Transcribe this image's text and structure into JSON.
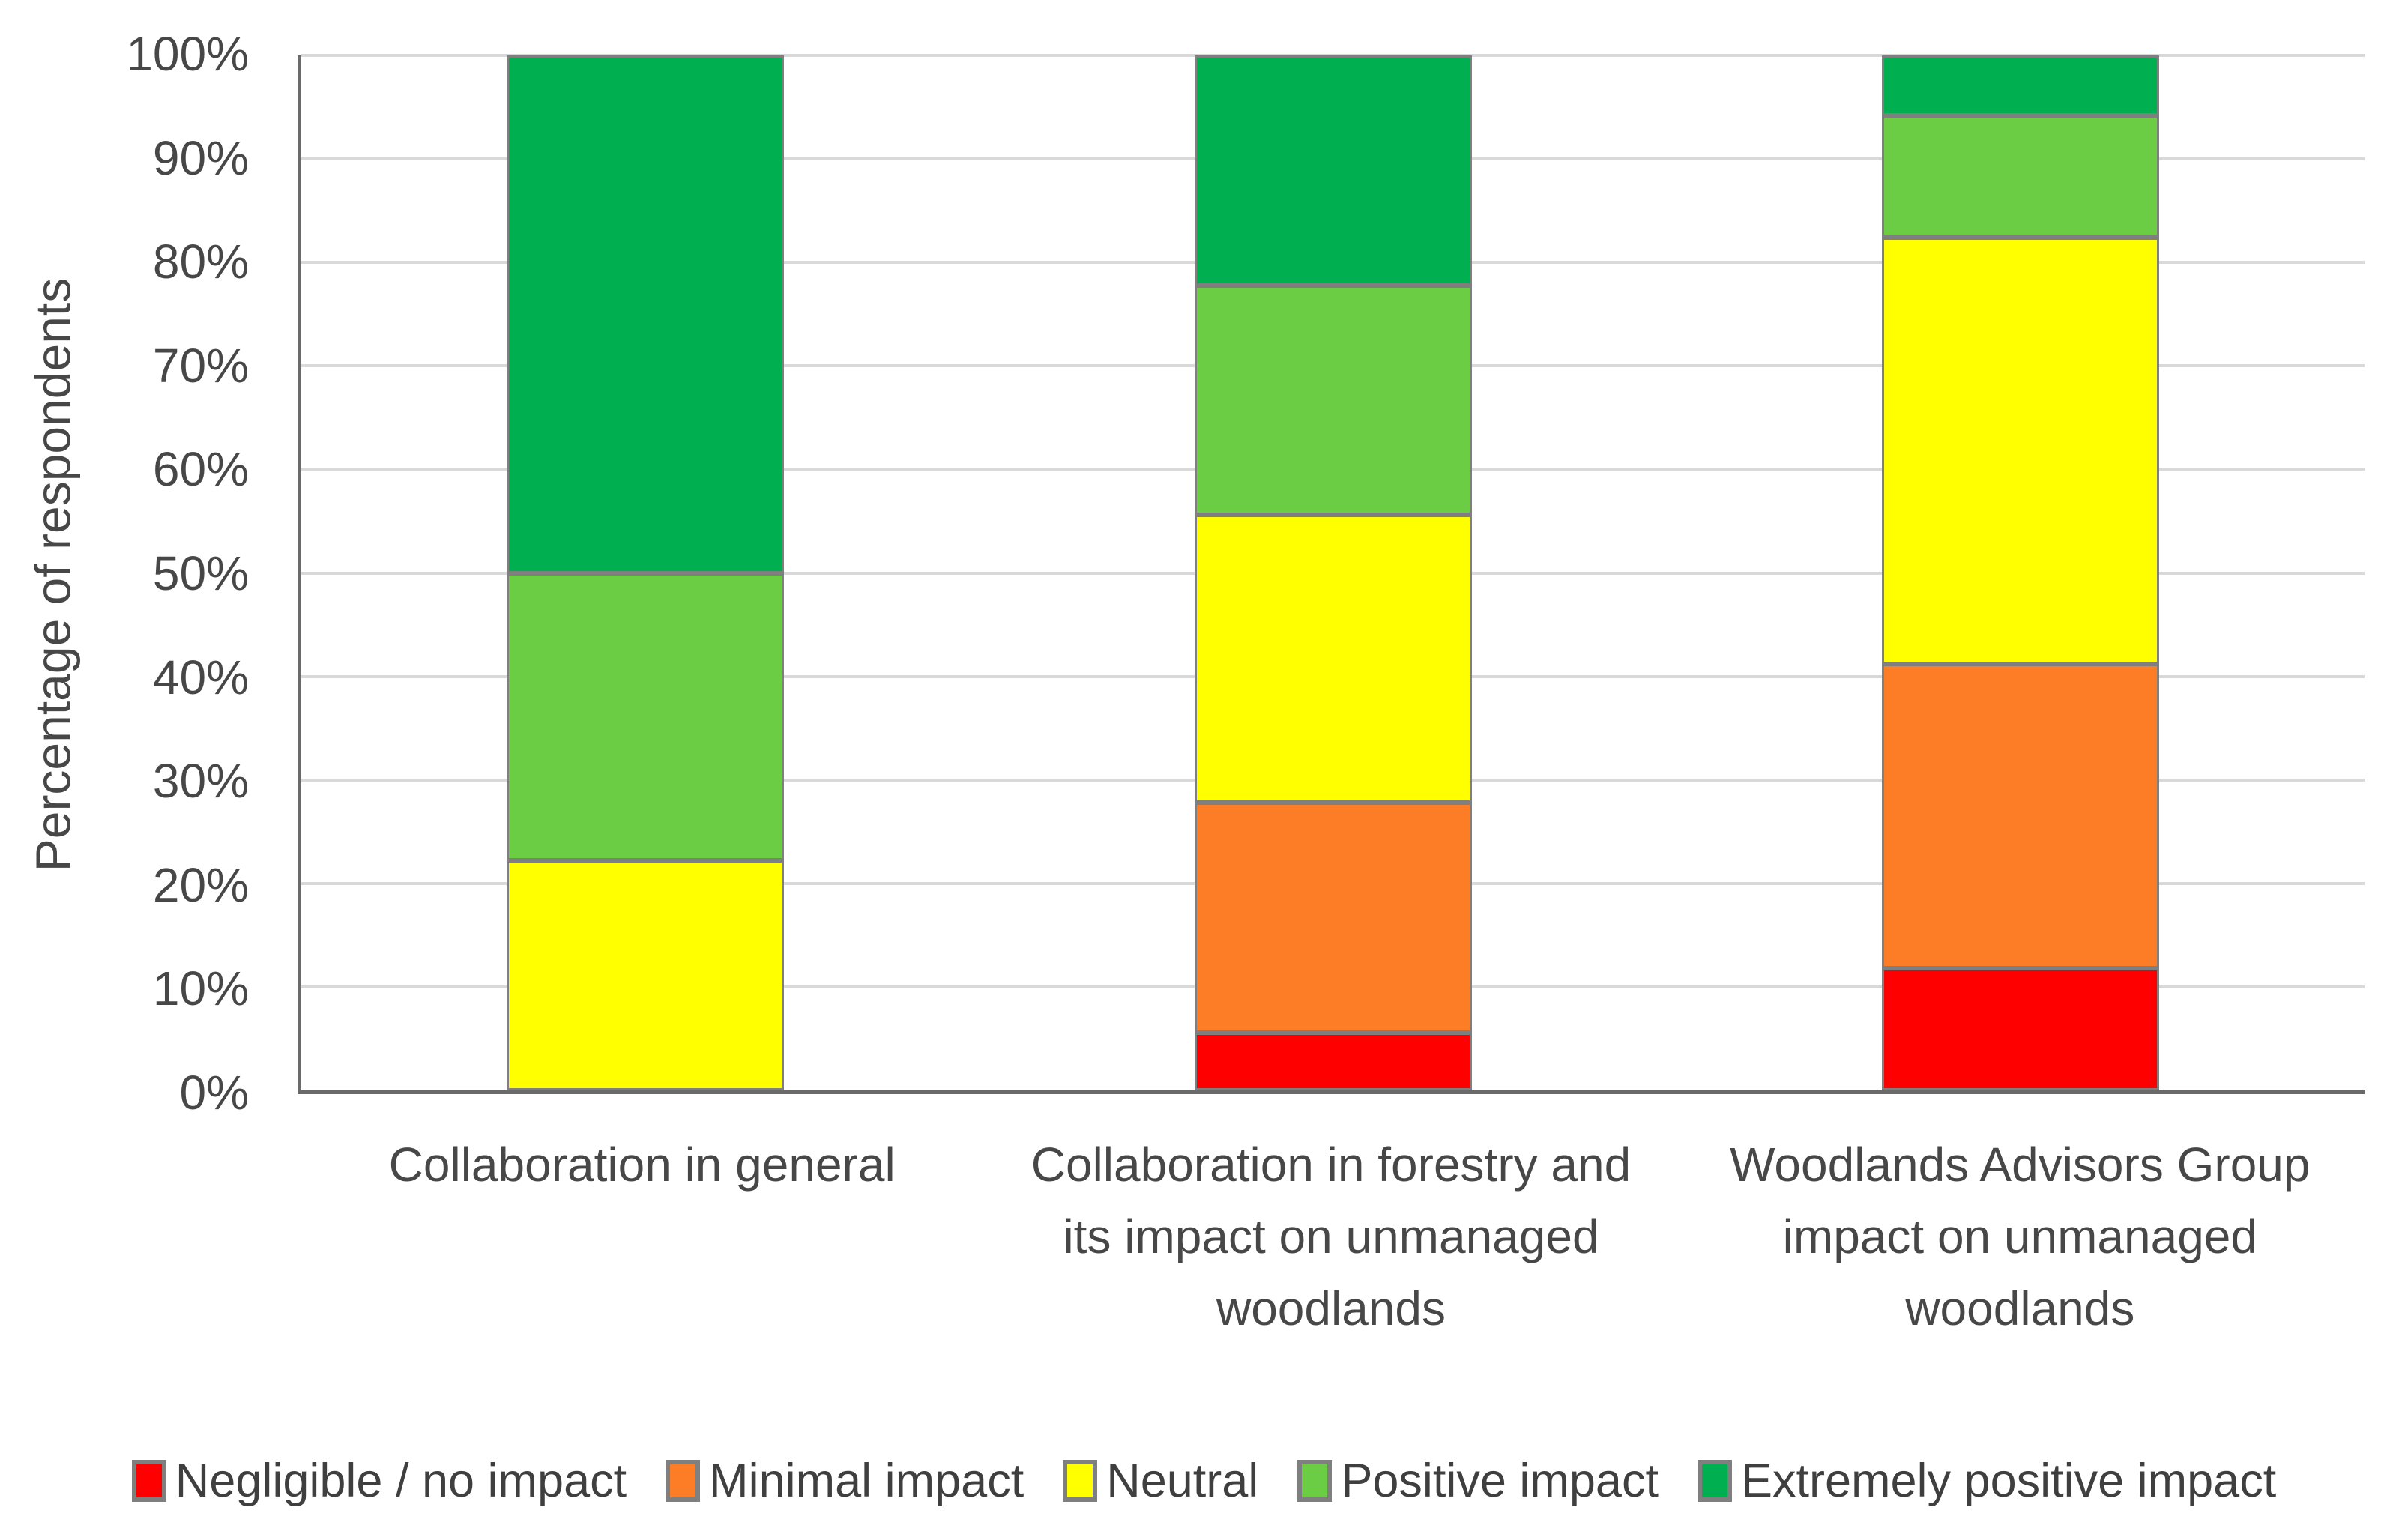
{
  "chart_data": {
    "type": "bar",
    "stacked": true,
    "units": "percent",
    "title": "",
    "xlabel": "",
    "ylabel": "Percentage of respondents",
    "ylim": [
      0,
      100
    ],
    "ytick_step": 10,
    "yticks": [
      "0%",
      "10%",
      "20%",
      "30%",
      "40%",
      "50%",
      "60%",
      "70%",
      "80%",
      "90%",
      "100%"
    ],
    "grid": "horizontal",
    "legend_position": "bottom",
    "categories": [
      "Collaboration in general",
      "Collaboration in forestry and its impact on unmanaged woodlands",
      "Woodlands Advisors Group impact on unmanaged woodlands"
    ],
    "series": [
      {
        "name": "Negligible / no impact",
        "color": "#FF0000",
        "values": [
          0,
          5.6,
          11.8
        ]
      },
      {
        "name": "Minimal impact",
        "color": "#FC7D26",
        "values": [
          0,
          22.2,
          29.4
        ]
      },
      {
        "name": "Neutral",
        "color": "#FFFF00",
        "values": [
          22.2,
          27.8,
          41.2
        ]
      },
      {
        "name": "Positive impact",
        "color": "#6ACD43",
        "values": [
          27.8,
          22.2,
          11.8
        ]
      },
      {
        "name": "Extremely positive impact",
        "color": "#00B050",
        "values": [
          50.0,
          22.2,
          5.9
        ]
      }
    ],
    "colors": {
      "gridline": "#D9D9D9",
      "axis_line": "#6A6A6A",
      "bar_border": "#7F7F7F",
      "text": "#474747"
    }
  }
}
